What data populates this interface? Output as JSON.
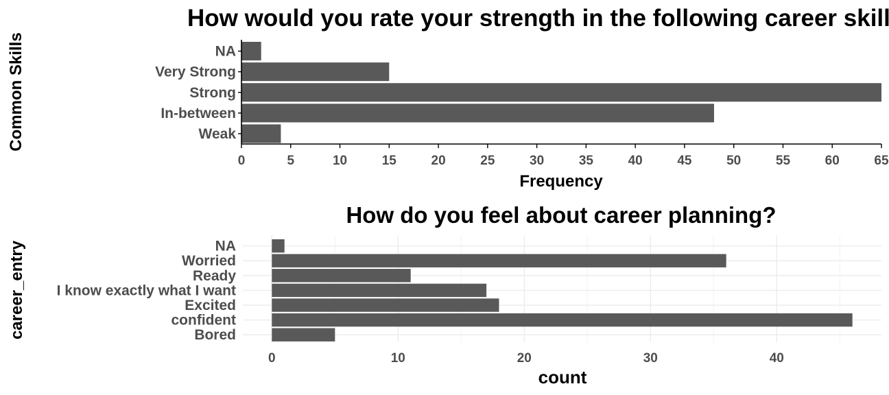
{
  "chart_data": [
    {
      "type": "bar",
      "orientation": "horizontal",
      "title": "How would you rate your strength  in the following career skills?",
      "ylabel": "Common Skills",
      "xlabel": "Frequency",
      "categories": [
        "Weak",
        "In-between",
        "Strong",
        "Very Strong",
        "NA"
      ],
      "values": [
        4,
        48,
        65,
        15,
        2
      ],
      "xlim": [
        0,
        65
      ],
      "xticks": [
        0,
        5,
        10,
        15,
        20,
        25,
        30,
        35,
        40,
        45,
        50,
        55,
        60,
        65
      ],
      "grid": false,
      "bar_color": "#595959"
    },
    {
      "type": "bar",
      "orientation": "horizontal",
      "title": "How do you feel about career  planning?",
      "ylabel": "career_entry",
      "xlabel": "count",
      "categories": [
        "Bored",
        "confident",
        "Excited",
        "I know exactly what I want",
        "Ready",
        "Worried",
        "NA"
      ],
      "values": [
        5,
        46,
        18,
        17,
        11,
        36,
        1
      ],
      "xlim": [
        -2.3,
        48.3
      ],
      "xticks": [
        0,
        10,
        20,
        30,
        40
      ],
      "grid": true,
      "bar_color": "#595959"
    }
  ]
}
